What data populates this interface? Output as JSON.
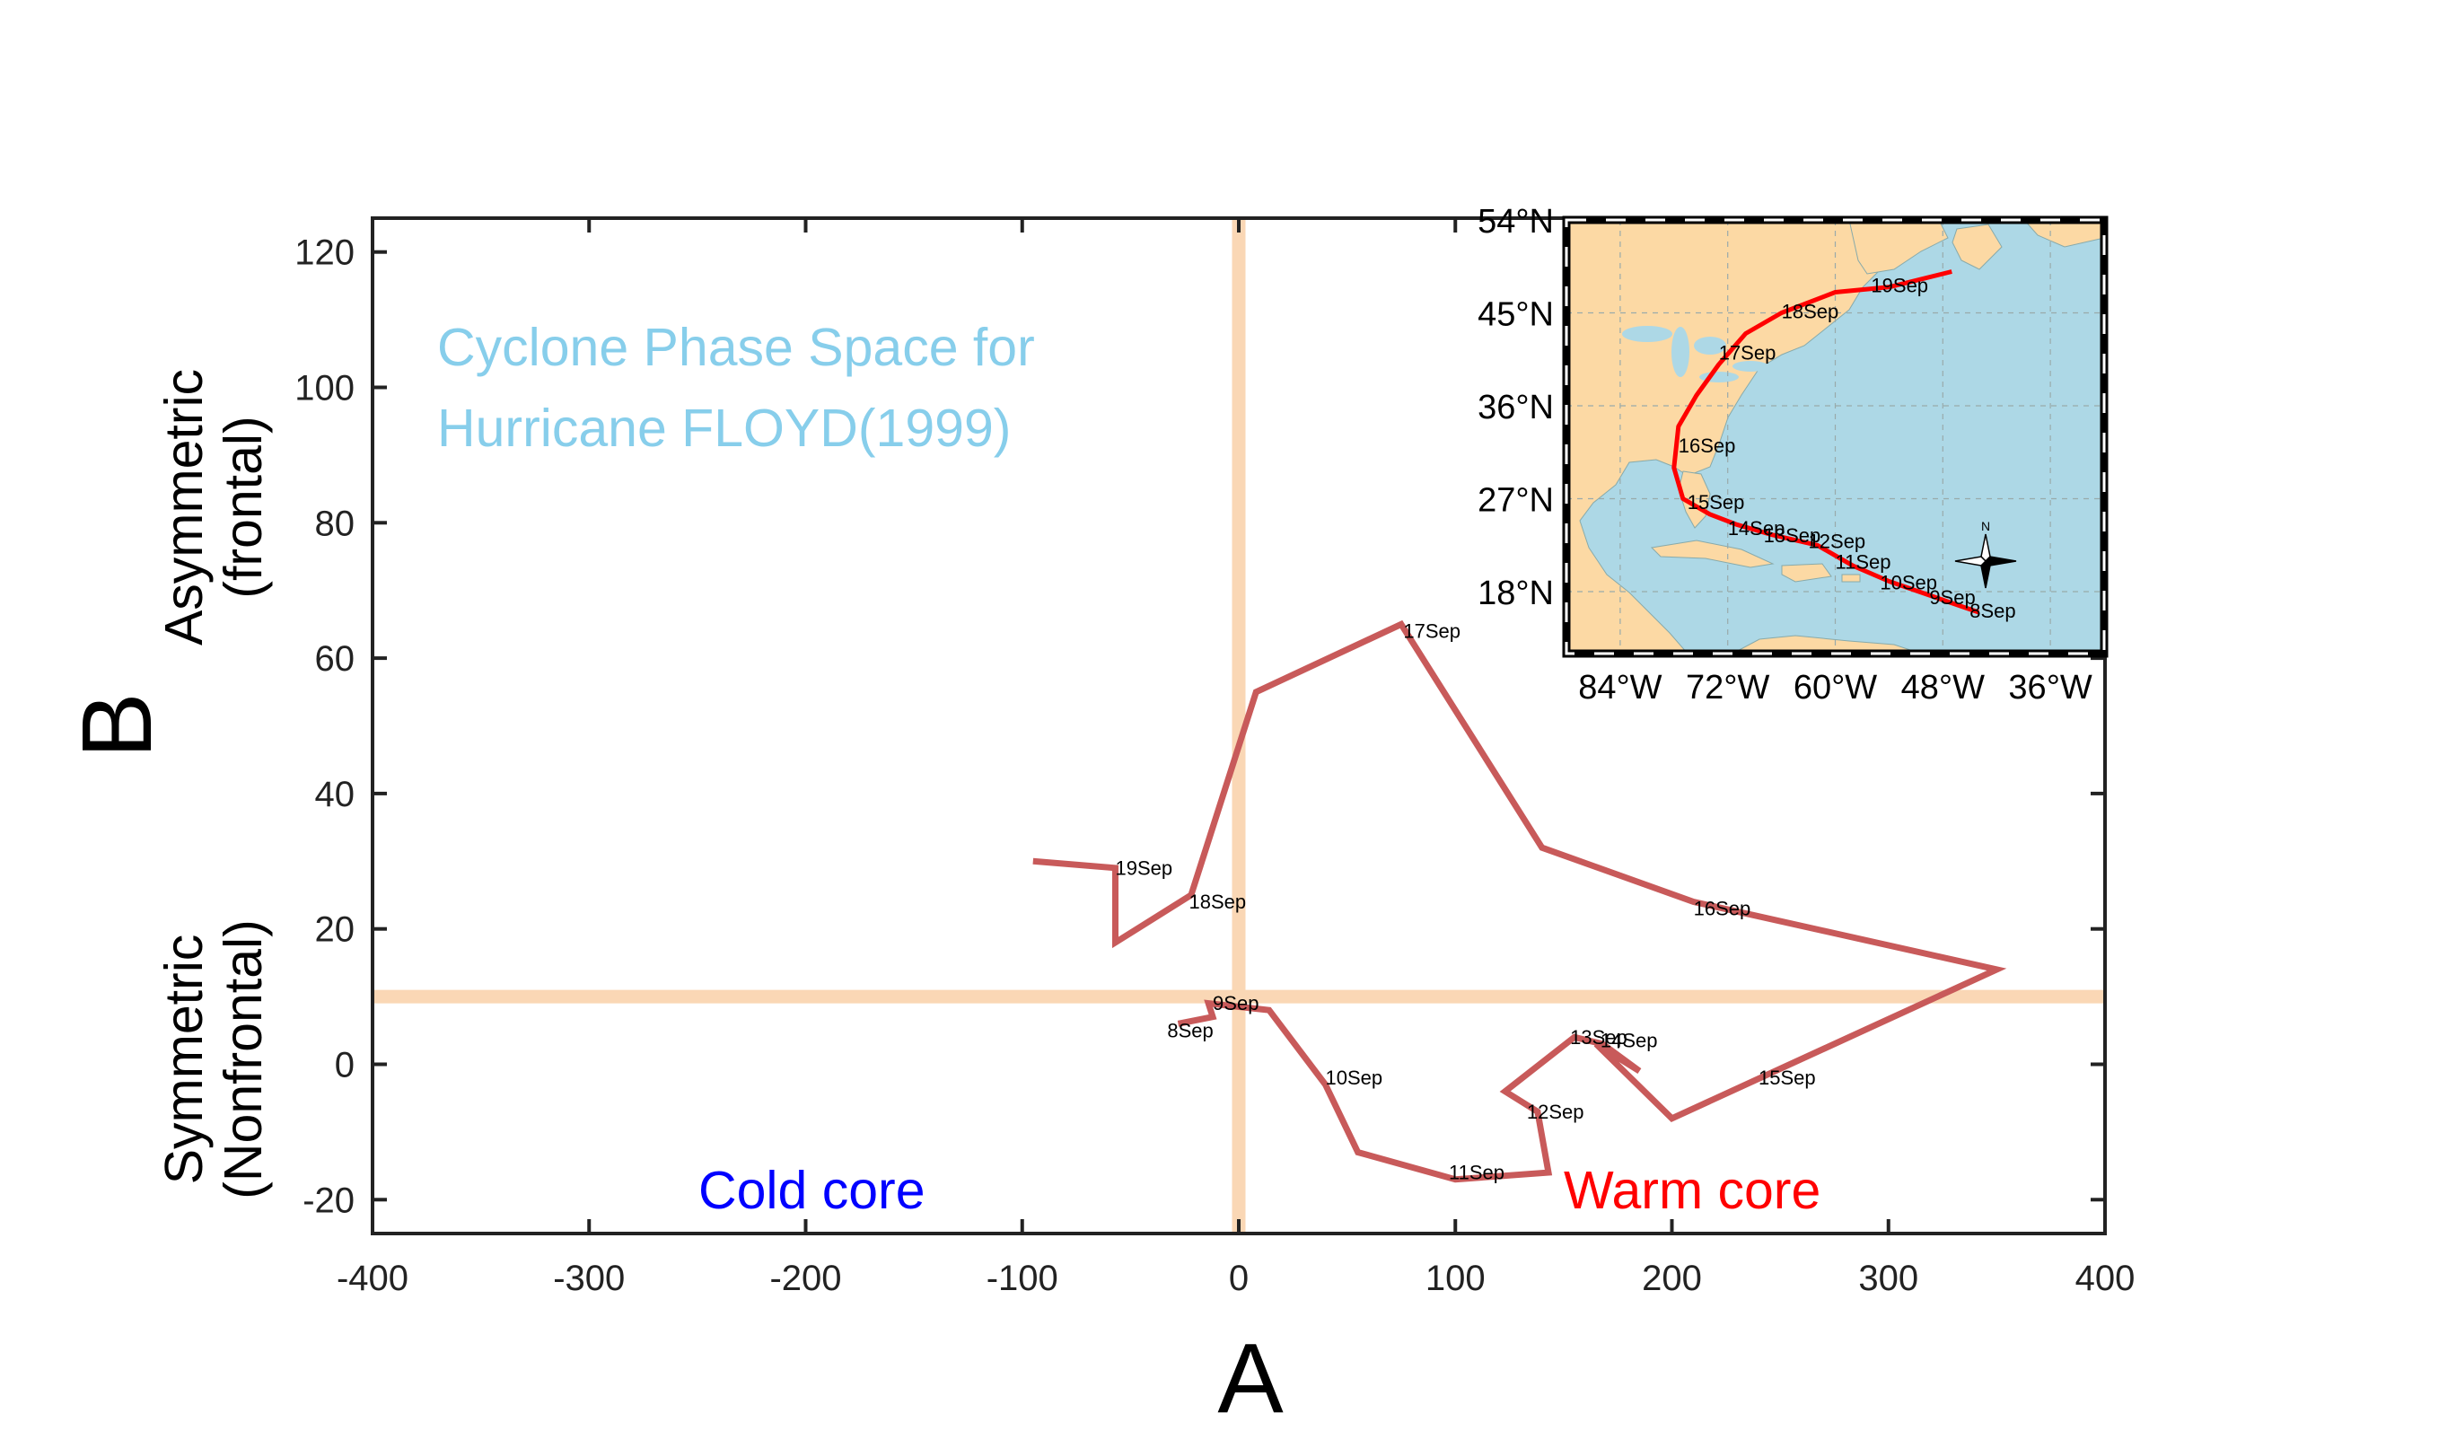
{
  "chart_data": [
    {
      "type": "line",
      "title": "Cyclone Phase Space for\nHurricane FLOYD(1999)",
      "xlabel": "A",
      "ylabel": "B",
      "ylabel_upper": "Asymmetric\n(frontal)",
      "ylabel_lower": "Symmetric\n(Nonfrontal)",
      "xlim": [
        -400,
        400
      ],
      "ylim": [
        -25,
        125
      ],
      "xticks": [
        -400,
        -300,
        -200,
        -100,
        0,
        100,
        200,
        300,
        400
      ],
      "yticks": [
        -20,
        0,
        20,
        40,
        60,
        80,
        100,
        120
      ],
      "grid": false,
      "reference_lines": {
        "vertical_x": 0,
        "horizontal_y": 10,
        "color": "#FAD7B5"
      },
      "region_labels": [
        {
          "text": "Cold core",
          "color": "#0000FF"
        },
        {
          "text": "Warm core",
          "color": "#FF0000"
        }
      ],
      "series": [
        {
          "color": "#C85A5A",
          "points": [
            {
              "x": -28,
              "y": 6
            },
            {
              "x": -12,
              "y": 7
            },
            {
              "x": -14,
              "y": 9
            },
            {
              "x": 14,
              "y": 8
            },
            {
              "x": 40,
              "y": -3
            },
            {
              "x": 55,
              "y": -13
            },
            {
              "x": 100,
              "y": -17
            },
            {
              "x": 143,
              "y": -16
            },
            {
              "x": 138,
              "y": -7
            },
            {
              "x": 123,
              "y": -4
            },
            {
              "x": 155,
              "y": 4
            },
            {
              "x": 168,
              "y": 3
            },
            {
              "x": 185,
              "y": -1
            },
            {
              "x": 165,
              "y": 3
            },
            {
              "x": 200,
              "y": -8
            },
            {
              "x": 350,
              "y": 14
            },
            {
              "x": 210,
              "y": 24
            },
            {
              "x": 140,
              "y": 32
            },
            {
              "x": 75,
              "y": 65
            },
            {
              "x": 8,
              "y": 55
            },
            {
              "x": -22,
              "y": 25
            },
            {
              "x": -57,
              "y": 18
            },
            {
              "x": -57,
              "y": 29
            },
            {
              "x": -95,
              "y": 30
            }
          ]
        }
      ],
      "annotations": [
        {
          "text": "8Sep",
          "x": -33,
          "y": 4
        },
        {
          "text": "9Sep",
          "x": -12,
          "y": 8
        },
        {
          "text": "10Sep",
          "x": 40,
          "y": -3
        },
        {
          "text": "11Sep",
          "x": 97,
          "y": -17
        },
        {
          "text": "12Sep",
          "x": 133,
          "y": -8
        },
        {
          "text": "13Sep",
          "x": 153,
          "y": 3
        },
        {
          "text": "14Sep",
          "x": 167,
          "y": 2.5
        },
        {
          "text": "15Sep",
          "x": 240,
          "y": -3
        },
        {
          "text": "16Sep",
          "x": 210,
          "y": 22
        },
        {
          "text": "17Sep",
          "x": 76,
          "y": 63
        },
        {
          "text": "18Sep",
          "x": -23,
          "y": 23
        },
        {
          "text": "19Sep",
          "x": -57,
          "y": 28
        }
      ]
    },
    {
      "type": "map",
      "title": "",
      "lon_range": [
        -90,
        -30
      ],
      "lat_range": [
        12,
        54
      ],
      "lon_ticks": [
        "84°W",
        "72°W",
        "60°W",
        "48°W",
        "36°W"
      ],
      "lat_ticks": [
        "54°N",
        "45°N",
        "36°N",
        "27°N",
        "18°N"
      ],
      "lat_tick_values": [
        54,
        45,
        36,
        27,
        18
      ],
      "land_color": "#FCD9A4",
      "ocean_color": "#ADD8E6",
      "track_color": "#FF0000",
      "compass_label": "N",
      "track": [
        {
          "lon": -44,
          "lat": 16
        },
        {
          "lon": -49,
          "lat": 17.5
        },
        {
          "lon": -54,
          "lat": 19
        },
        {
          "lon": -58,
          "lat": 20.5
        },
        {
          "lon": -62,
          "lat": 22.5
        },
        {
          "lon": -67,
          "lat": 23.5
        },
        {
          "lon": -71,
          "lat": 24.5
        },
        {
          "lon": -74,
          "lat": 25.5
        },
        {
          "lon": -77,
          "lat": 27
        },
        {
          "lon": -78,
          "lat": 30
        },
        {
          "lon": -77.5,
          "lat": 34
        },
        {
          "lon": -75.5,
          "lat": 37
        },
        {
          "lon": -73,
          "lat": 40
        },
        {
          "lon": -70,
          "lat": 43
        },
        {
          "lon": -66,
          "lat": 45
        },
        {
          "lon": -60,
          "lat": 47
        },
        {
          "lon": -54,
          "lat": 47.5
        },
        {
          "lon": -47,
          "lat": 49
        }
      ],
      "annotations": [
        {
          "text": "8Sep",
          "lon": -45,
          "lat": 15.5
        },
        {
          "text": "9Sep",
          "lon": -49.5,
          "lat": 16.8
        },
        {
          "text": "10Sep",
          "lon": -55,
          "lat": 18.2
        },
        {
          "text": "11Sep",
          "lon": -60,
          "lat": 20.2
        },
        {
          "text": "12Sep",
          "lon": -63,
          "lat": 22.2
        },
        {
          "text": "13Sep",
          "lon": -68,
          "lat": 22.8
        },
        {
          "text": "14Sep",
          "lon": -72,
          "lat": 23.5
        },
        {
          "text": "15Sep",
          "lon": -76.5,
          "lat": 26
        },
        {
          "text": "16Sep",
          "lon": -77.5,
          "lat": 31.5
        },
        {
          "text": "17Sep",
          "lon": -73,
          "lat": 40.5
        },
        {
          "text": "18Sep",
          "lon": -66,
          "lat": 44.5
        },
        {
          "text": "19Sep",
          "lon": -56,
          "lat": 47
        }
      ]
    }
  ]
}
